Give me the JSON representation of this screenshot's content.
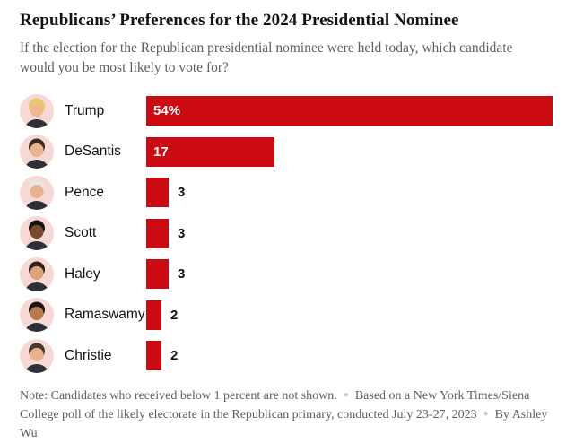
{
  "header": {
    "title": "Republicans’ Preferences for the 2024 Presidential Nominee",
    "subtitle": "If the election for the Republican presidential nominee were held today, which candidate would you be most likely to vote for?"
  },
  "chart_data": {
    "type": "bar",
    "orientation": "horizontal",
    "title": "Republicans’ Preferences for the 2024 Presidential Nominee",
    "categories": [
      "Trump",
      "DeSantis",
      "Pence",
      "Scott",
      "Haley",
      "Ramaswamy",
      "Christie"
    ],
    "values": [
      54,
      17,
      3,
      3,
      3,
      2,
      2
    ],
    "value_labels": [
      "54%",
      "17",
      "3",
      "3",
      "3",
      "2",
      "2"
    ],
    "unit": "percent",
    "bar_color": "#cc0a11",
    "xlim": [
      0,
      54
    ],
    "grid": false,
    "legend": "none"
  },
  "avatars": [
    {
      "name": "Trump",
      "bg": "#f6d8d5",
      "skin": "#f0b98a",
      "hair": "#e9c868",
      "suit": "#2f3038"
    },
    {
      "name": "DeSantis",
      "bg": "#f6d8d5",
      "skin": "#e9b58d",
      "hair": "#3a2a20",
      "suit": "#2f3038"
    },
    {
      "name": "Pence",
      "bg": "#f6d8d5",
      "skin": "#e9b28b",
      "hair": "#e9e6e1",
      "suit": "#2f3038"
    },
    {
      "name": "Scott",
      "bg": "#f6d8d5",
      "skin": "#7a4a2e",
      "hair": "#181210",
      "suit": "#2f3038"
    },
    {
      "name": "Haley",
      "bg": "#f6d8d5",
      "skin": "#dba379",
      "hair": "#2e1f18",
      "suit": "#2f3038"
    },
    {
      "name": "Ramaswamy",
      "bg": "#f6d8d5",
      "skin": "#b57a4e",
      "hair": "#1c1410",
      "suit": "#2f3038"
    },
    {
      "name": "Christie",
      "bg": "#f6d8d5",
      "skin": "#e9b28b",
      "hair": "#4a3a2e",
      "suit": "#2f3038"
    }
  ],
  "note": {
    "separator": "●",
    "segments": [
      "Note: Candidates who received below 1 percent are not shown.",
      "Based on a New York Times/Siena College poll of the likely electorate in the Republican primary, conducted July 23-27, 2023",
      "By Ashley Wu"
    ]
  }
}
